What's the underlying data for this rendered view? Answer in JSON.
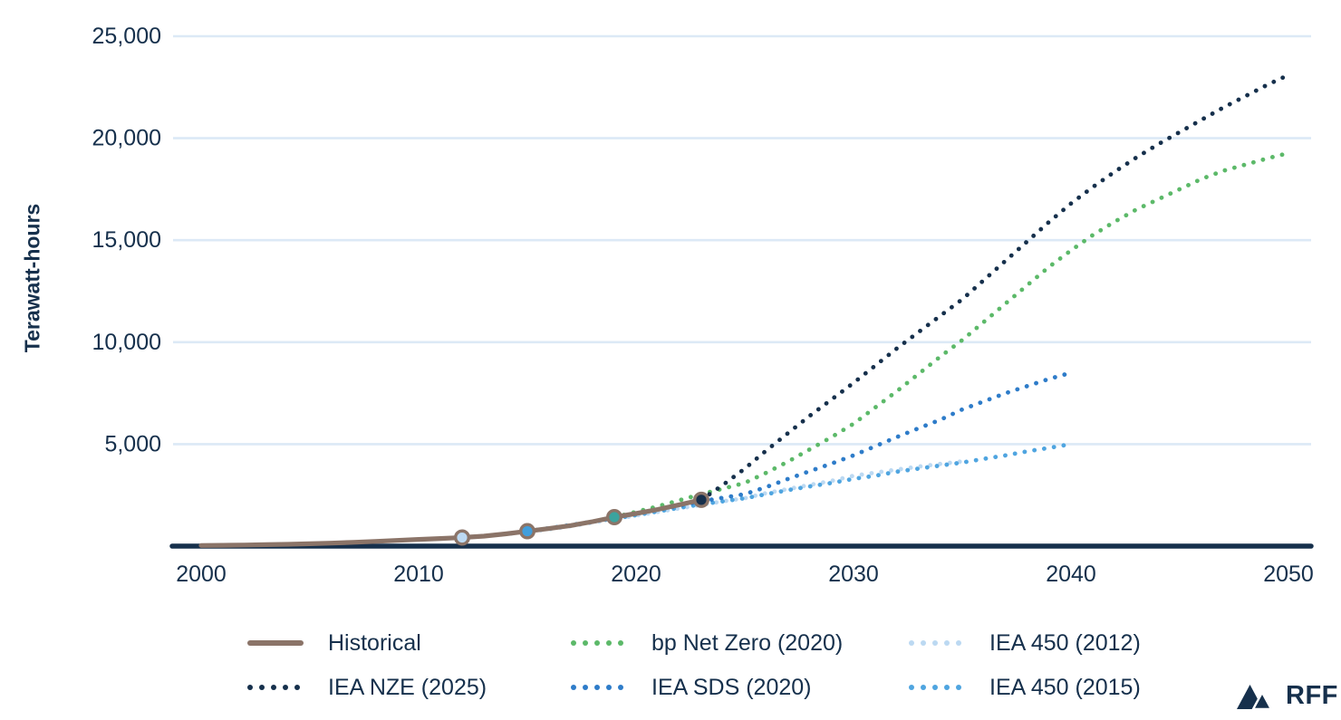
{
  "colors": {
    "navy": "#16304C",
    "brown": "#8B7468",
    "green": "#5CB969",
    "sds_blue": "#2E7CC9",
    "blue_2015": "#4FA5E0",
    "blue_2012": "#BCD9F2",
    "teal_marker": "#3BA39E",
    "marker_2015_fill": "#419EDC",
    "gridline": "#DCE9F6",
    "background": "#FFFFFF"
  },
  "y_axis": {
    "label": "Terawatt-hours",
    "ticks": [
      {
        "value": 5000,
        "label": "5,000"
      },
      {
        "value": 10000,
        "label": "10,000"
      },
      {
        "value": 15000,
        "label": "15,000"
      },
      {
        "value": 20000,
        "label": "20,000"
      },
      {
        "value": 25000,
        "label": "25,000"
      }
    ]
  },
  "x_axis": {
    "ticks": [
      {
        "value": 2000,
        "label": "2000"
      },
      {
        "value": 2010,
        "label": "2010"
      },
      {
        "value": 2020,
        "label": "2020"
      },
      {
        "value": 2030,
        "label": "2030"
      },
      {
        "value": 2040,
        "label": "2040"
      },
      {
        "value": 2050,
        "label": "2050"
      }
    ]
  },
  "chart_data": {
    "type": "line",
    "title": "",
    "xlabel": "",
    "ylabel": "Terawatt-hours",
    "xlim": [
      2000,
      2050
    ],
    "ylim": [
      0,
      25000
    ],
    "grid": "horizontal",
    "legend_position": "bottom",
    "series": [
      {
        "name": "IEA 450 (2012)",
        "style": "dotted",
        "color_key": "blue_2012",
        "points": [
          [
            2012,
            420
          ],
          [
            2013,
            500
          ],
          [
            2014,
            580
          ],
          [
            2015,
            700
          ],
          [
            2016,
            820
          ],
          [
            2017,
            980
          ],
          [
            2018,
            1150
          ],
          [
            2019,
            1320
          ],
          [
            2020,
            1500
          ],
          [
            2021,
            1680
          ],
          [
            2022,
            1850
          ],
          [
            2023,
            2020
          ],
          [
            2024,
            2200
          ],
          [
            2025,
            2350
          ],
          [
            2026,
            2600
          ],
          [
            2027,
            2800
          ],
          [
            2028,
            3000
          ],
          [
            2029,
            3200
          ],
          [
            2030,
            3450
          ],
          [
            2031,
            3600
          ],
          [
            2032,
            3750
          ],
          [
            2033,
            3900
          ],
          [
            2034,
            4030
          ],
          [
            2035,
            4150
          ]
        ]
      },
      {
        "name": "IEA 450 (2015)",
        "style": "dotted",
        "color_key": "blue_2015",
        "points": [
          [
            2015,
            730
          ],
          [
            2016,
            880
          ],
          [
            2017,
            1040
          ],
          [
            2018,
            1200
          ],
          [
            2019,
            1350
          ],
          [
            2020,
            1520
          ],
          [
            2021,
            1700
          ],
          [
            2022,
            1880
          ],
          [
            2023,
            2050
          ],
          [
            2024,
            2200
          ],
          [
            2025,
            2350
          ],
          [
            2026,
            2550
          ],
          [
            2027,
            2750
          ],
          [
            2028,
            2930
          ],
          [
            2029,
            3100
          ],
          [
            2030,
            3300
          ],
          [
            2031,
            3450
          ],
          [
            2032,
            3650
          ],
          [
            2033,
            3800
          ],
          [
            2034,
            3950
          ],
          [
            2035,
            4100
          ],
          [
            2036,
            4280
          ],
          [
            2037,
            4450
          ],
          [
            2038,
            4650
          ],
          [
            2039,
            4820
          ],
          [
            2040,
            5000
          ]
        ]
      },
      {
        "name": "IEA SDS (2020)",
        "style": "dotted",
        "color_key": "sds_blue",
        "points": [
          [
            2019,
            1420
          ],
          [
            2020,
            1600
          ],
          [
            2021,
            1780
          ],
          [
            2022,
            1990
          ],
          [
            2023,
            2200
          ],
          [
            2024,
            2370
          ],
          [
            2025,
            2550
          ],
          [
            2026,
            2900
          ],
          [
            2027,
            3300
          ],
          [
            2028,
            3680
          ],
          [
            2029,
            4050
          ],
          [
            2030,
            4450
          ],
          [
            2031,
            4900
          ],
          [
            2032,
            5350
          ],
          [
            2033,
            5780
          ],
          [
            2034,
            6200
          ],
          [
            2035,
            6700
          ],
          [
            2036,
            7100
          ],
          [
            2037,
            7500
          ],
          [
            2038,
            7850
          ],
          [
            2039,
            8200
          ],
          [
            2040,
            8500
          ]
        ]
      },
      {
        "name": "bp Net Zero (2020)",
        "style": "dotted",
        "color_key": "green",
        "points": [
          [
            2019,
            1420
          ],
          [
            2020,
            1680
          ],
          [
            2021,
            1950
          ],
          [
            2022,
            2250
          ],
          [
            2023,
            2550
          ],
          [
            2024,
            2820
          ],
          [
            2025,
            3100
          ],
          [
            2026,
            3600
          ],
          [
            2027,
            4150
          ],
          [
            2028,
            4750
          ],
          [
            2029,
            5350
          ],
          [
            2030,
            6000
          ],
          [
            2031,
            6800
          ],
          [
            2032,
            7600
          ],
          [
            2033,
            8450
          ],
          [
            2034,
            9300
          ],
          [
            2035,
            10100
          ],
          [
            2036,
            11000
          ],
          [
            2037,
            11900
          ],
          [
            2038,
            12800
          ],
          [
            2039,
            13700
          ],
          [
            2040,
            14500
          ],
          [
            2041,
            15250
          ],
          [
            2042,
            15900
          ],
          [
            2043,
            16500
          ],
          [
            2044,
            17000
          ],
          [
            2045,
            17500
          ],
          [
            2046,
            18000
          ],
          [
            2047,
            18400
          ],
          [
            2048,
            18700
          ],
          [
            2049,
            19000
          ],
          [
            2050,
            19270
          ]
        ]
      },
      {
        "name": "IEA NZE (2025)",
        "style": "dotted",
        "color_key": "navy",
        "points": [
          [
            2023,
            2270
          ],
          [
            2024,
            3000
          ],
          [
            2025,
            3800
          ],
          [
            2026,
            4700
          ],
          [
            2027,
            5550
          ],
          [
            2028,
            6400
          ],
          [
            2029,
            7200
          ],
          [
            2030,
            8000
          ],
          [
            2031,
            8850
          ],
          [
            2032,
            9700
          ],
          [
            2033,
            10500
          ],
          [
            2034,
            11300
          ],
          [
            2035,
            12100
          ],
          [
            2036,
            13050
          ],
          [
            2037,
            14000
          ],
          [
            2038,
            14950
          ],
          [
            2039,
            15900
          ],
          [
            2040,
            16800
          ],
          [
            2041,
            17600
          ],
          [
            2042,
            18350
          ],
          [
            2043,
            19050
          ],
          [
            2044,
            19700
          ],
          [
            2045,
            20300
          ],
          [
            2046,
            20900
          ],
          [
            2047,
            21500
          ],
          [
            2048,
            22050
          ],
          [
            2049,
            22600
          ],
          [
            2050,
            23100
          ]
        ]
      },
      {
        "name": "Historical",
        "style": "solid",
        "color_key": "brown",
        "points": [
          [
            2000,
            30
          ],
          [
            2001,
            40
          ],
          [
            2002,
            55
          ],
          [
            2003,
            70
          ],
          [
            2004,
            90
          ],
          [
            2005,
            115
          ],
          [
            2006,
            145
          ],
          [
            2007,
            185
          ],
          [
            2008,
            230
          ],
          [
            2009,
            280
          ],
          [
            2010,
            330
          ],
          [
            2011,
            375
          ],
          [
            2012,
            420
          ],
          [
            2013,
            490
          ],
          [
            2014,
            600
          ],
          [
            2015,
            730
          ],
          [
            2016,
            860
          ],
          [
            2017,
            1010
          ],
          [
            2018,
            1200
          ],
          [
            2019,
            1420
          ],
          [
            2020,
            1600
          ],
          [
            2021,
            1800
          ],
          [
            2022,
            2030
          ],
          [
            2023,
            2270
          ]
        ]
      }
    ],
    "markers": [
      {
        "year": 2012,
        "value": 420,
        "fill_key": "blue_2012",
        "note": "IEA 450 (2012) branch point"
      },
      {
        "year": 2015,
        "value": 730,
        "fill_key": "marker_2015_fill",
        "note": "IEA 450 (2015) branch point"
      },
      {
        "year": 2019,
        "value": 1420,
        "fill_key": "teal_marker",
        "note": "2020 scenarios branch point"
      },
      {
        "year": 2023,
        "value": 2270,
        "fill_key": "navy",
        "note": "IEA NZE (2025) branch point / end of historical"
      }
    ]
  },
  "legend": {
    "items": [
      {
        "label": "Historical",
        "style": "solid",
        "color_key": "brown"
      },
      {
        "label": "bp Net Zero (2020)",
        "style": "dotted",
        "color_key": "green"
      },
      {
        "label": "IEA 450 (2012)",
        "style": "dotted",
        "color_key": "blue_2012"
      },
      {
        "label": "IEA NZE (2025)",
        "style": "dotted",
        "color_key": "navy"
      },
      {
        "label": "IEA SDS (2020)",
        "style": "dotted",
        "color_key": "sds_blue"
      },
      {
        "label": "IEA 450 (2015)",
        "style": "dotted",
        "color_key": "blue_2015"
      }
    ]
  },
  "logo": {
    "text": "RFF"
  }
}
